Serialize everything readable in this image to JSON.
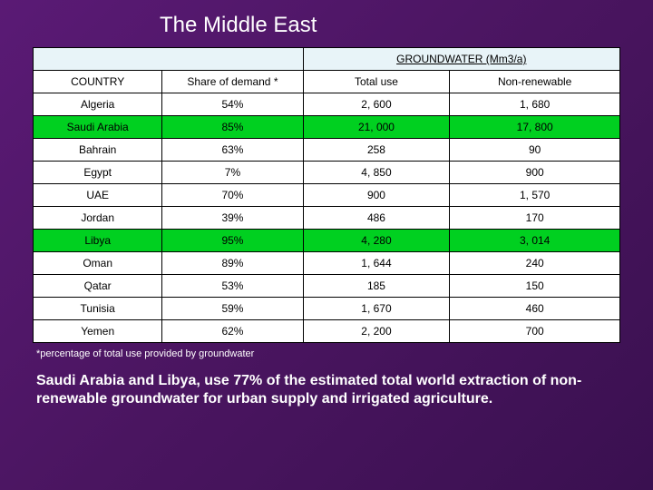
{
  "title": "The Middle East",
  "table": {
    "super_header_label": "GROUNDWATER (Mm3/a)",
    "columns": [
      "COUNTRY",
      "Share of demand *",
      "Total use",
      "Non-renewable"
    ],
    "col_widths": [
      "22%",
      "24%",
      "25%",
      "29%"
    ],
    "rows": [
      {
        "cells": [
          "Algeria",
          "54%",
          "2, 600",
          "1, 680"
        ],
        "highlight": false
      },
      {
        "cells": [
          "Saudi Arabia",
          "85%",
          "21, 000",
          "17, 800"
        ],
        "highlight": true
      },
      {
        "cells": [
          "Bahrain",
          "63%",
          "258",
          "90"
        ],
        "highlight": false
      },
      {
        "cells": [
          "Egypt",
          "7%",
          "4, 850",
          "900"
        ],
        "highlight": false
      },
      {
        "cells": [
          "UAE",
          "70%",
          "900",
          "1, 570"
        ],
        "highlight": false
      },
      {
        "cells": [
          "Jordan",
          "39%",
          "486",
          "170"
        ],
        "highlight": false
      },
      {
        "cells": [
          "Libya",
          "95%",
          "4, 280",
          "3, 014"
        ],
        "highlight": true
      },
      {
        "cells": [
          "Oman",
          "89%",
          "1, 644",
          "240"
        ],
        "highlight": false
      },
      {
        "cells": [
          "Qatar",
          "53%",
          "185",
          "150"
        ],
        "highlight": false
      },
      {
        "cells": [
          "Tunisia",
          "59%",
          "1, 670",
          "460"
        ],
        "highlight": false
      },
      {
        "cells": [
          "Yemen",
          "62%",
          "2, 200",
          "700"
        ],
        "highlight": false
      }
    ],
    "styling": {
      "header_bg": "#e8f4f8",
      "row_bg": "#ffffff",
      "highlight_bg": "#00d020",
      "border_color": "#000000",
      "text_color": "#000000",
      "font_size_pt": 9
    }
  },
  "footnote": "*percentage of total use provided by groundwater",
  "summary": "Saudi Arabia and Libya, use  77% of the estimated total world extraction of non-renewable groundwater for urban supply and irrigated agriculture.",
  "slide_styling": {
    "background_gradient": [
      "#5a1a75",
      "#4a1560",
      "#3a1050"
    ],
    "title_color": "#ffffff",
    "title_fontsize_pt": 18,
    "footnote_color": "#ffffff",
    "summary_color": "#ffffff",
    "summary_fontsize_pt": 12,
    "summary_bold": true
  }
}
